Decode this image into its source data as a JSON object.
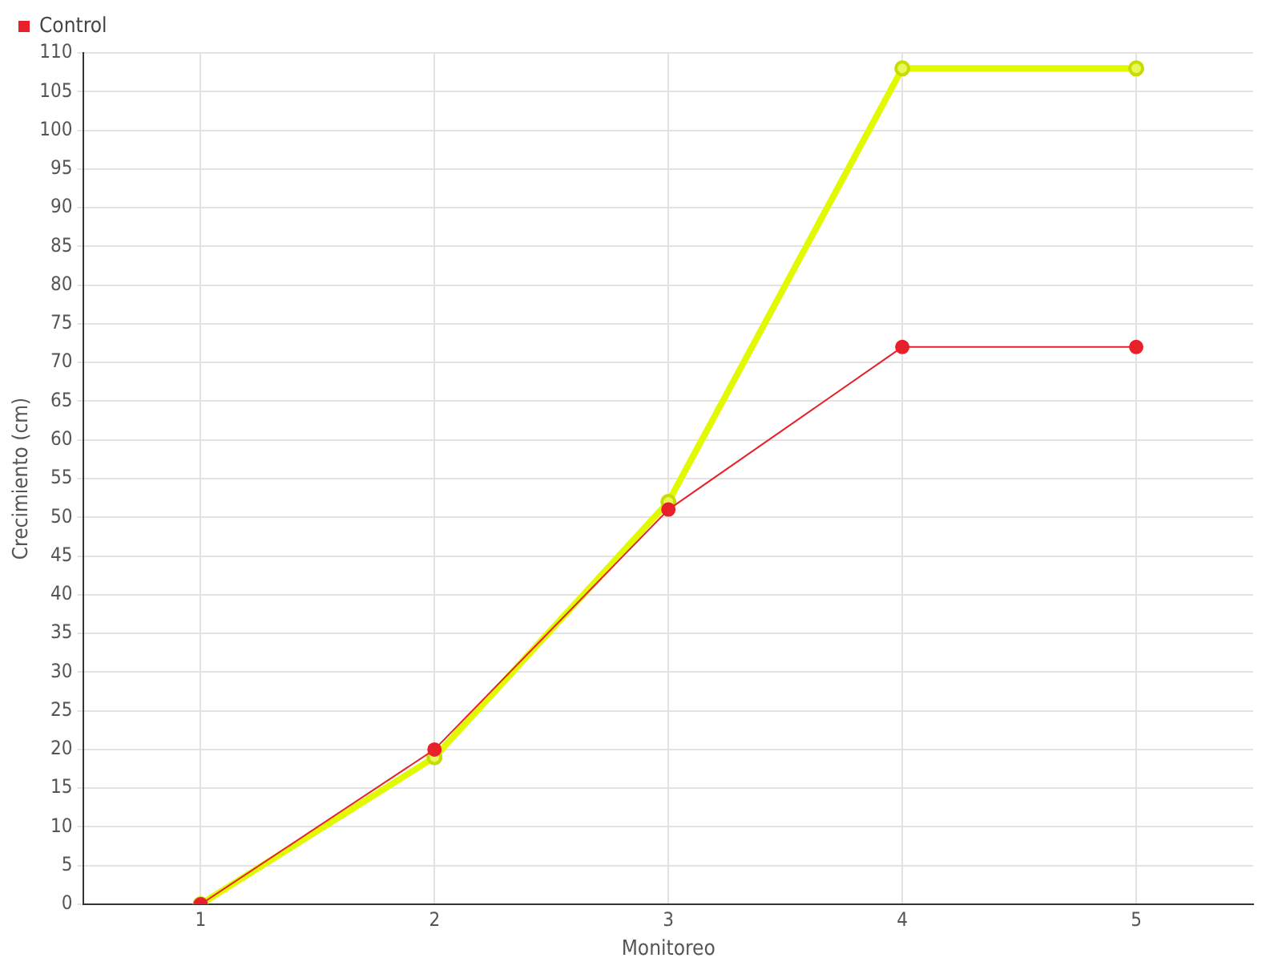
{
  "chart_data": {
    "type": "line",
    "xlabel": "Monitoreo",
    "ylabel": "Crecimiento (cm)",
    "categories": [
      "1",
      "2",
      "3",
      "4",
      "5"
    ],
    "series": [
      {
        "color": "#e1fa00",
        "values": [
          0,
          19,
          52,
          108,
          108
        ]
      },
      {
        "name": "Control",
        "color": "#e8202a",
        "values": [
          0,
          20,
          51,
          72,
          72
        ]
      }
    ],
    "ylim": [
      0,
      110
    ],
    "yticks": [
      0,
      5,
      10,
      15,
      20,
      25,
      30,
      35,
      40,
      45,
      50,
      55,
      60,
      65,
      70,
      75,
      80,
      85,
      90,
      95,
      100,
      105,
      110
    ],
    "grid": true,
    "legend": "top left",
    "marker": "circle",
    "line_style": "solid"
  }
}
